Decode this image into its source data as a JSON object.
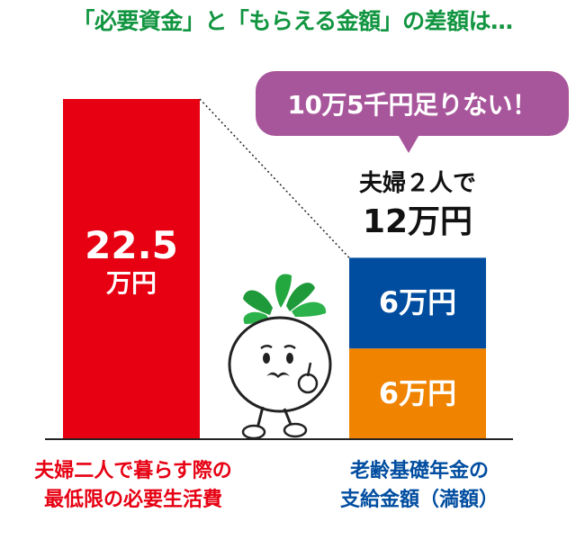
{
  "title": {
    "text": "「必要資金」と「もらえる金額」の差額は…",
    "color": "#119540"
  },
  "callout": {
    "text": "10万5千円足りない！",
    "color": "#a8569b"
  },
  "chart_data": {
    "type": "bar",
    "unit": "万円",
    "categories": [
      "夫婦二人で暮らす際の最低限の必要生活費",
      "老齢基礎年金の支給金額（満額）"
    ],
    "bars": [
      {
        "category": "夫婦二人で暮らす際の最低限の必要生活費",
        "total": 22.5,
        "total_label": "22.5",
        "unit_label": "万円",
        "color": "#e60012"
      },
      {
        "category": "老齢基礎年金の支給金額（満額）",
        "total": 12,
        "stack_caption": "夫婦２人で",
        "stack_total_label": "12万円",
        "segments": [
          {
            "value": 6,
            "label": "6万円",
            "color": "#f08300"
          },
          {
            "value": 6,
            "label": "6万円",
            "color": "#004da0"
          }
        ]
      }
    ],
    "ylim": [
      0,
      22.5
    ]
  },
  "captions": {
    "left": {
      "line1": "夫婦二人で暮らす際の",
      "line2": "最低限の必要生活費",
      "color": "#e60012"
    },
    "right": {
      "line1": "老齢基礎年金の",
      "line2": "支給金額（満額）",
      "color": "#004da0"
    }
  },
  "mascot": {
    "name": "daikon-mascot"
  }
}
